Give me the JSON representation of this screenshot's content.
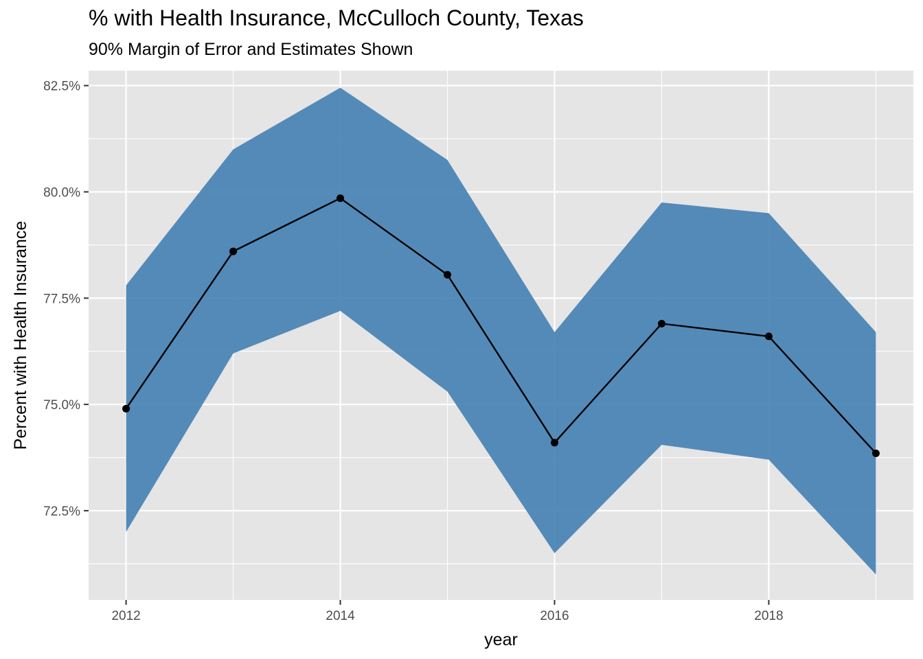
{
  "title": "% with Health Insurance, McCulloch County, Texas",
  "subtitle": "90% Margin of Error and Estimates Shown",
  "colors": {
    "panel_background": "#E5E5E5",
    "grid_major": "#FFFFFF",
    "ribbon_fill": "#4682B4",
    "line": "#000000"
  },
  "chart_data": {
    "type": "line",
    "title": "% with Health Insurance, McCulloch County, Texas",
    "subtitle": "90% Margin of Error and Estimates Shown",
    "xlabel": "year",
    "ylabel": "Percent with Health Insurance",
    "x": [
      2012,
      2013,
      2014,
      2015,
      2016,
      2017,
      2018,
      2019
    ],
    "x_ticks": [
      2012,
      2014,
      2016,
      2018
    ],
    "x_tick_labels": [
      "2012",
      "2014",
      "2016",
      "2018"
    ],
    "y_ticks": [
      72.5,
      75.0,
      77.5,
      80.0,
      82.5
    ],
    "y_tick_labels": [
      "72.5%",
      "75.0%",
      "77.5%",
      "80.0%",
      "82.5%"
    ],
    "xlim": [
      2011.65,
      2019.35
    ],
    "ylim": [
      70.4,
      82.85
    ],
    "grid": true,
    "legend": "none",
    "series": [
      {
        "values": [
          74.9,
          78.6,
          79.85,
          78.05,
          74.1,
          76.9,
          76.6,
          73.85
        ]
      }
    ],
    "ribbon": {
      "lower": [
        72.0,
        76.2,
        77.2,
        75.3,
        71.5,
        74.05,
        73.7,
        71.0
      ],
      "upper": [
        77.8,
        81.0,
        82.45,
        80.75,
        76.7,
        79.75,
        79.5,
        76.7
      ]
    }
  }
}
